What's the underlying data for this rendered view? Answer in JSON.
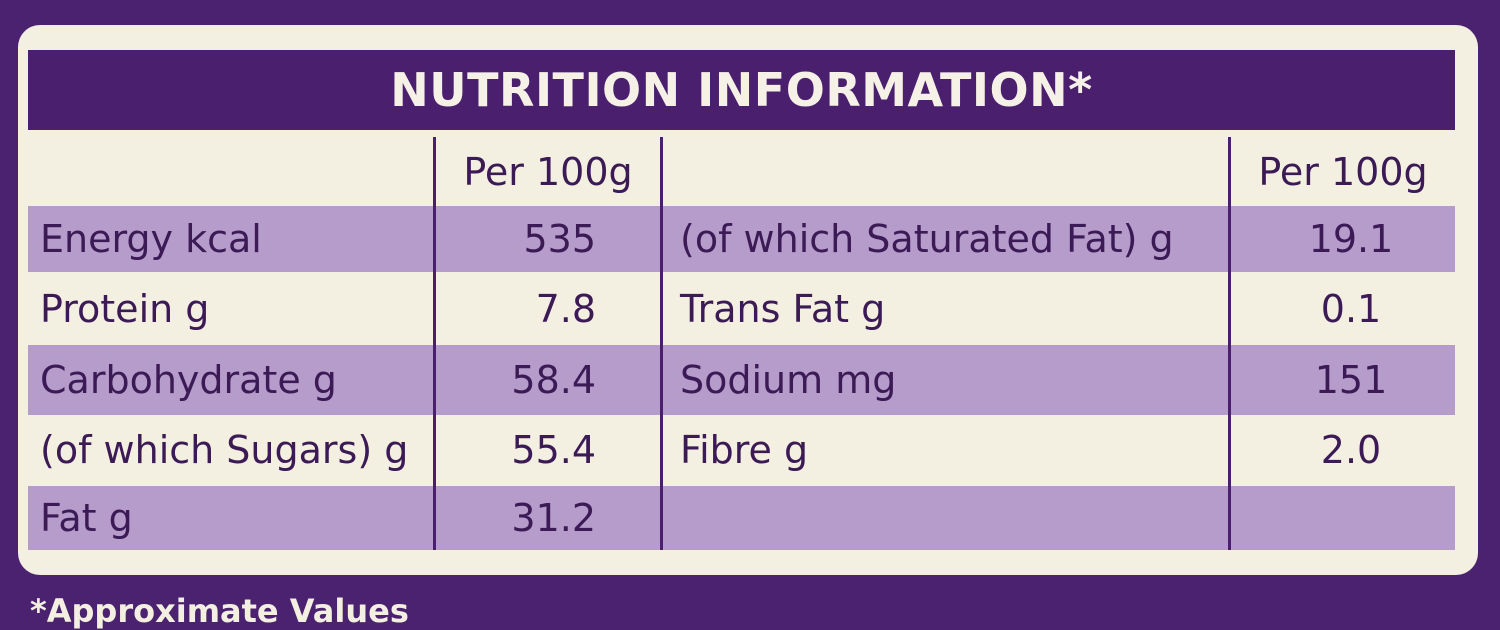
{
  "header": {
    "title": "NUTRITION INFORMATION*"
  },
  "table": {
    "columns": [
      "Per 100g",
      "Per 100g"
    ],
    "rows": [
      [
        "Energy kcal",
        "535",
        "(of which Saturated Fat) g",
        "19.1"
      ],
      [
        "Protein g",
        "7.8",
        "Trans Fat g",
        "0.1"
      ],
      [
        "Carbohydrate g",
        "58.4",
        "Sodium mg",
        "151"
      ],
      [
        "(of which Sugars) g",
        "55.4",
        "Fibre g",
        "2.0"
      ],
      [
        "Fat g",
        "31.2"
      ]
    ]
  },
  "footer": {
    "note": "*Approximate Values"
  }
}
